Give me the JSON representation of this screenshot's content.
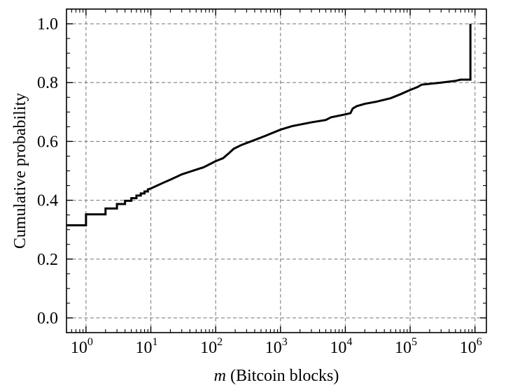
{
  "chart_data": {
    "type": "line",
    "subtype": "step-cdf",
    "xlabel_var": "m",
    "xlabel_rest": " (Bitcoin blocks)",
    "ylabel": "Cumulative probability",
    "xscale": "log",
    "xlim": [
      0.5,
      1500000
    ],
    "ylim": [
      -0.05,
      1.05
    ],
    "grid": true,
    "line_color": "#000000",
    "grid_color": "#808080",
    "x_ticks": [
      {
        "base": "10",
        "exp": "0",
        "value": 1
      },
      {
        "base": "10",
        "exp": "1",
        "value": 10
      },
      {
        "base": "10",
        "exp": "2",
        "value": 100
      },
      {
        "base": "10",
        "exp": "3",
        "value": 1000
      },
      {
        "base": "10",
        "exp": "4",
        "value": 10000
      },
      {
        "base": "10",
        "exp": "5",
        "value": 100000
      },
      {
        "base": "10",
        "exp": "6",
        "value": 1000000
      }
    ],
    "y_ticks": [
      {
        "label": "0.0",
        "value": 0.0
      },
      {
        "label": "0.2",
        "value": 0.2
      },
      {
        "label": "0.4",
        "value": 0.4
      },
      {
        "label": "0.6",
        "value": 0.6
      },
      {
        "label": "0.8",
        "value": 0.8
      },
      {
        "label": "1.0",
        "value": 1.0
      }
    ],
    "series": [
      {
        "points": [
          [
            0.5,
            0.315
          ],
          [
            1,
            0.315
          ],
          [
            1,
            0.352
          ],
          [
            2,
            0.352
          ],
          [
            2,
            0.372
          ],
          [
            3,
            0.372
          ],
          [
            3,
            0.387
          ],
          [
            4,
            0.387
          ],
          [
            4,
            0.398
          ],
          [
            5,
            0.398
          ],
          [
            5,
            0.407
          ],
          [
            6,
            0.407
          ],
          [
            6,
            0.416
          ],
          [
            7,
            0.416
          ],
          [
            7,
            0.423
          ],
          [
            8,
            0.423
          ],
          [
            8,
            0.43
          ],
          [
            9,
            0.43
          ],
          [
            9,
            0.437
          ],
          [
            10,
            0.44
          ],
          [
            12,
            0.448
          ],
          [
            15,
            0.458
          ],
          [
            20,
            0.47
          ],
          [
            30,
            0.488
          ],
          [
            40,
            0.497
          ],
          [
            50,
            0.504
          ],
          [
            65,
            0.512
          ],
          [
            80,
            0.522
          ],
          [
            100,
            0.533
          ],
          [
            130,
            0.543
          ],
          [
            160,
            0.56
          ],
          [
            190,
            0.575
          ],
          [
            250,
            0.588
          ],
          [
            400,
            0.605
          ],
          [
            600,
            0.62
          ],
          [
            1000,
            0.64
          ],
          [
            1500,
            0.652
          ],
          [
            3000,
            0.665
          ],
          [
            5000,
            0.673
          ],
          [
            6000,
            0.682
          ],
          [
            10000,
            0.692
          ],
          [
            12000,
            0.696
          ],
          [
            13000,
            0.712
          ],
          [
            15000,
            0.72
          ],
          [
            20000,
            0.728
          ],
          [
            30000,
            0.735
          ],
          [
            50000,
            0.747
          ],
          [
            70000,
            0.76
          ],
          [
            100000,
            0.775
          ],
          [
            130000,
            0.785
          ],
          [
            150000,
            0.793
          ],
          [
            300000,
            0.8
          ],
          [
            500000,
            0.806
          ],
          [
            600000,
            0.81
          ],
          [
            850000,
            0.81
          ],
          [
            850000,
            1.0
          ]
        ]
      }
    ]
  }
}
